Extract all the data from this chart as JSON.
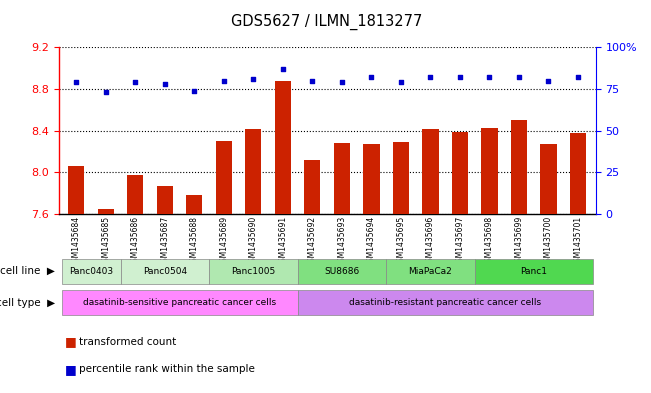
{
  "title": "GDS5627 / ILMN_1813277",
  "samples": [
    "GSM1435684",
    "GSM1435685",
    "GSM1435686",
    "GSM1435687",
    "GSM1435688",
    "GSM1435689",
    "GSM1435690",
    "GSM1435691",
    "GSM1435692",
    "GSM1435693",
    "GSM1435694",
    "GSM1435695",
    "GSM1435696",
    "GSM1435697",
    "GSM1435698",
    "GSM1435699",
    "GSM1435700",
    "GSM1435701"
  ],
  "bar_values": [
    8.06,
    7.65,
    7.98,
    7.87,
    7.78,
    8.3,
    8.42,
    8.88,
    8.12,
    8.28,
    8.27,
    8.29,
    8.42,
    8.39,
    8.43,
    8.5,
    8.27,
    8.38
  ],
  "dot_values": [
    79,
    73,
    79,
    78,
    74,
    80,
    81,
    87,
    80,
    79,
    82,
    79,
    82,
    82,
    82,
    82,
    80,
    82
  ],
  "bar_color": "#cc2200",
  "dot_color": "#0000cc",
  "ylim_left": [
    7.6,
    9.2
  ],
  "ylim_right": [
    0,
    100
  ],
  "yticks_left": [
    7.6,
    8.0,
    8.4,
    8.8,
    9.2
  ],
  "yticks_right": [
    0,
    25,
    50,
    75,
    100
  ],
  "cell_lines": [
    {
      "label": "Panc0403",
      "start": 0,
      "end": 2,
      "color": "#d0f0d0"
    },
    {
      "label": "Panc0504",
      "start": 2,
      "end": 5,
      "color": "#d0f0d0"
    },
    {
      "label": "Panc1005",
      "start": 5,
      "end": 8,
      "color": "#b0e8b0"
    },
    {
      "label": "SU8686",
      "start": 8,
      "end": 11,
      "color": "#80e080"
    },
    {
      "label": "MiaPaCa2",
      "start": 11,
      "end": 14,
      "color": "#80e080"
    },
    {
      "label": "Panc1",
      "start": 14,
      "end": 18,
      "color": "#50d850"
    }
  ],
  "cell_types": [
    {
      "label": "dasatinib-sensitive pancreatic cancer cells",
      "start": 0,
      "end": 8,
      "color": "#ff88ff"
    },
    {
      "label": "dasatinib-resistant pancreatic cancer cells",
      "start": 8,
      "end": 18,
      "color": "#cc88ee"
    }
  ],
  "legend_bar_label": "transformed count",
  "legend_dot_label": "percentile rank within the sample"
}
